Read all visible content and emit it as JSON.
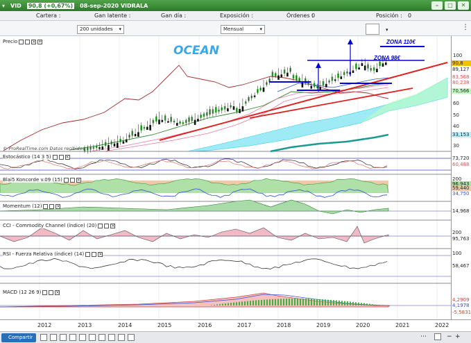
{
  "titlebar": {
    "symbol": "VID",
    "price_change": "90,8 (+0,67%)",
    "date_name": "08-sep-2020 VIDRALA",
    "ctrl_min": "–",
    "ctrl_max": "□",
    "ctrl_close": "✕"
  },
  "infobar": {
    "cartera": "Cartera :",
    "gan_latente": "Gan latente :",
    "gan_dia": "Gan día :",
    "exposicion": "Exposición :",
    "ordenes": "Órdenes :",
    "ordenes_val": "0",
    "posicion": "Posición :",
    "posicion_val": "0"
  },
  "toolbar": {
    "units": "200 unidades",
    "period": "Mensual"
  },
  "watermark": "OCEAN",
  "source": "© ProRealTime.com  Datos recibidos",
  "annotations": {
    "zona110": "ZONA 110€",
    "zona98": "ZONA 98€"
  },
  "panels": {
    "precio": "Precio",
    "estocastico": "Estocástico (14 3 5)",
    "koncorde": "Blai5 Koncorde v.09 (15)",
    "momentum": "Momentum (12)",
    "cci": "CCI - Commodity Channel (índice) (20)",
    "rsi": "RSI - Fuerza Relativa (índice) (14)",
    "macd": "MACD (12 26 9)"
  },
  "axis": {
    "price_ticks": [
      "100",
      "90",
      "80",
      "70",
      "60",
      "50",
      "40",
      "30"
    ],
    "price_labels": [
      {
        "text": "90,8",
        "color": "#f2c200"
      },
      {
        "text": "89,127",
        "color": "#ffffff"
      },
      {
        "text": "83,568",
        "color": "#e05050"
      },
      {
        "text": "80,238",
        "color": "#e05050"
      },
      {
        "text": "70,566",
        "color": "#7fd27f"
      },
      {
        "text": "33,153",
        "color": "#bfefff"
      }
    ],
    "stoch": [
      "73,720",
      "60,488"
    ],
    "koncorde": [
      "200",
      "96,943",
      "59,440",
      "34,750"
    ],
    "momentum": [
      "14,968"
    ],
    "cci": [
      "200",
      "95,763"
    ],
    "rsi": [
      "100",
      "58,467"
    ],
    "macd": [
      "4,2909",
      "4,1978",
      "-5,5831"
    ]
  },
  "xaxis_years": [
    "2012",
    "2013",
    "2014",
    "2015",
    "2016",
    "2017",
    "2018",
    "2019",
    "2020",
    "2021",
    "2022"
  ],
  "bottom": {
    "share": "Compartir"
  }
}
